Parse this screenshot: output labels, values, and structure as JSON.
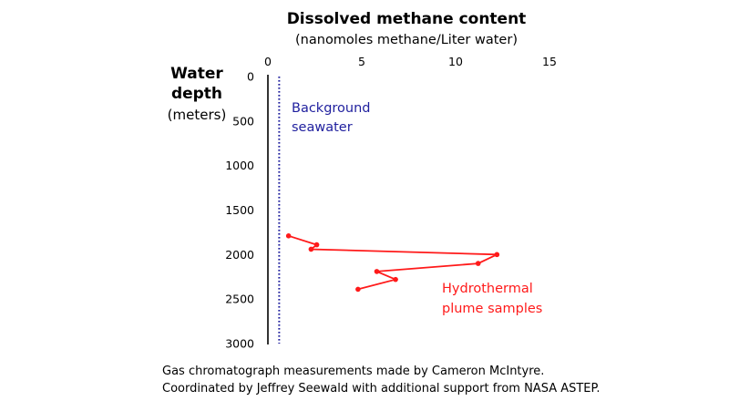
{
  "chart_data": {
    "type": "line",
    "title": "Dissolved methane content",
    "subtitle": "(nanomoles methane/Liter water)",
    "xlabel": "(nanomoles methane/Liter water)",
    "ylabel_lines": [
      "Water",
      "depth",
      "(meters)"
    ],
    "x_ticks": [
      "0",
      "5",
      "10",
      "15"
    ],
    "y_ticks": [
      "0",
      "500",
      "1000",
      "1500",
      "2000",
      "2500",
      "3000"
    ],
    "xlim": [
      0,
      15
    ],
    "ylim": [
      0,
      3000
    ],
    "y_inverted": true,
    "x_axis_position": "top",
    "grid": false,
    "series": [
      {
        "name": "Background seawater",
        "label_lines": [
          "Background",
          "seawater"
        ],
        "color": "#1f1f9e",
        "style": "dotted",
        "x": [
          0.6,
          0.6
        ],
        "y": [
          0,
          3000
        ]
      },
      {
        "name": "Hydrothermal plume samples",
        "label_lines": [
          "Hydrothermal",
          "plume samples"
        ],
        "color": "#ff1a1a",
        "style": "solid-with-markers",
        "x": [
          1.1,
          2.6,
          2.3,
          12.2,
          11.2,
          5.8,
          6.8,
          4.8
        ],
        "y": [
          1790,
          1890,
          1940,
          2000,
          2100,
          2190,
          2280,
          2390
        ]
      }
    ]
  },
  "caption": {
    "line1": "Gas chromatograph measurements made by Cameron McIntyre.",
    "line2": "Coordinated by Jeffrey Seewald with additional support from NASA ASTEP."
  }
}
